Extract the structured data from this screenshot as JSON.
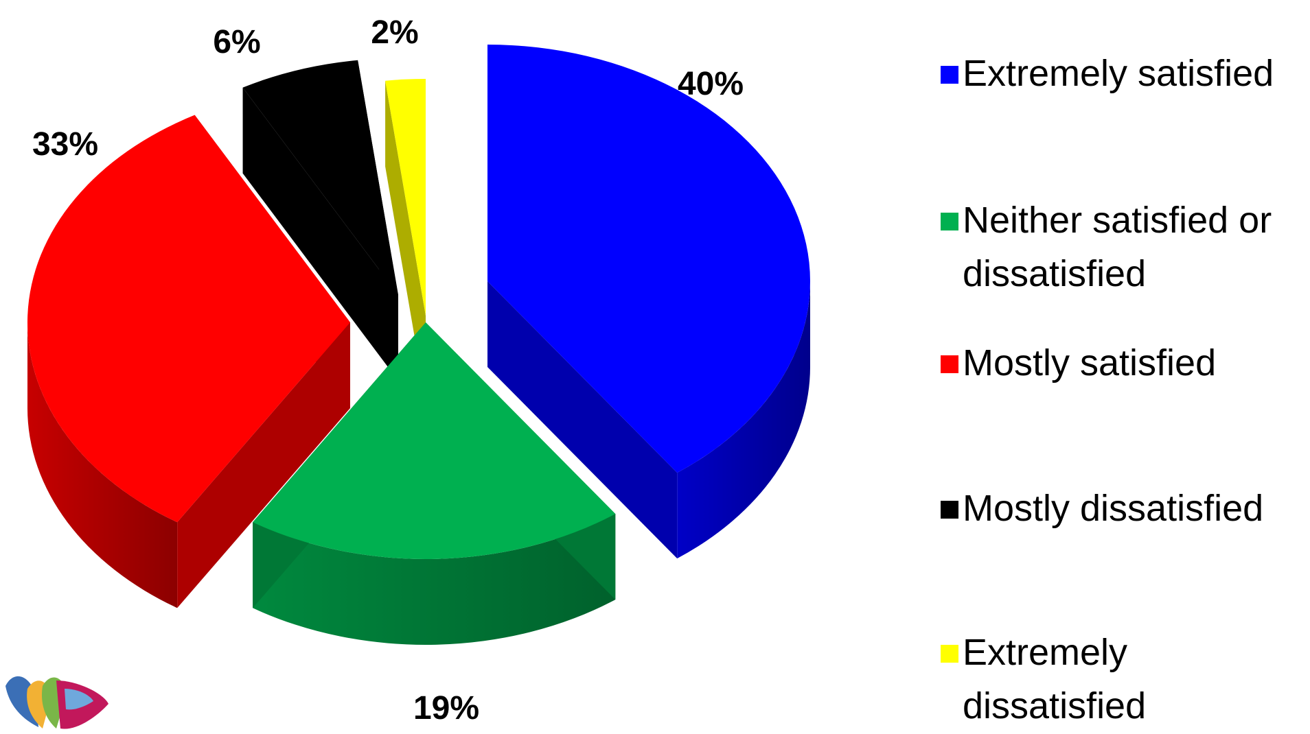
{
  "chart_data": {
    "type": "pie",
    "style": "3d-exploded",
    "title": "",
    "slices": [
      {
        "name": "Extremely satisfied",
        "value": 40,
        "label": "40%",
        "color": "#0000FF"
      },
      {
        "name": "Neither satisfied or\ndissatisfied",
        "value": 19,
        "label": "19%",
        "color": "#00B050"
      },
      {
        "name": "Mostly satisfied",
        "value": 33,
        "label": "33%",
        "color": "#FF0000"
      },
      {
        "name": "Mostly dissatisfied",
        "value": 6,
        "label": "6%",
        "color": "#000000"
      },
      {
        "name": "Extremely dissatisfied",
        "value": 2,
        "label": "2%",
        "color": "#FFFF00"
      }
    ],
    "legend_position": "right"
  },
  "logo": {
    "icon": "brand-logo-icon",
    "colors": [
      "#3B6FB6",
      "#F2B134",
      "#7AB648",
      "#C2185B",
      "#6FA8DC"
    ]
  }
}
